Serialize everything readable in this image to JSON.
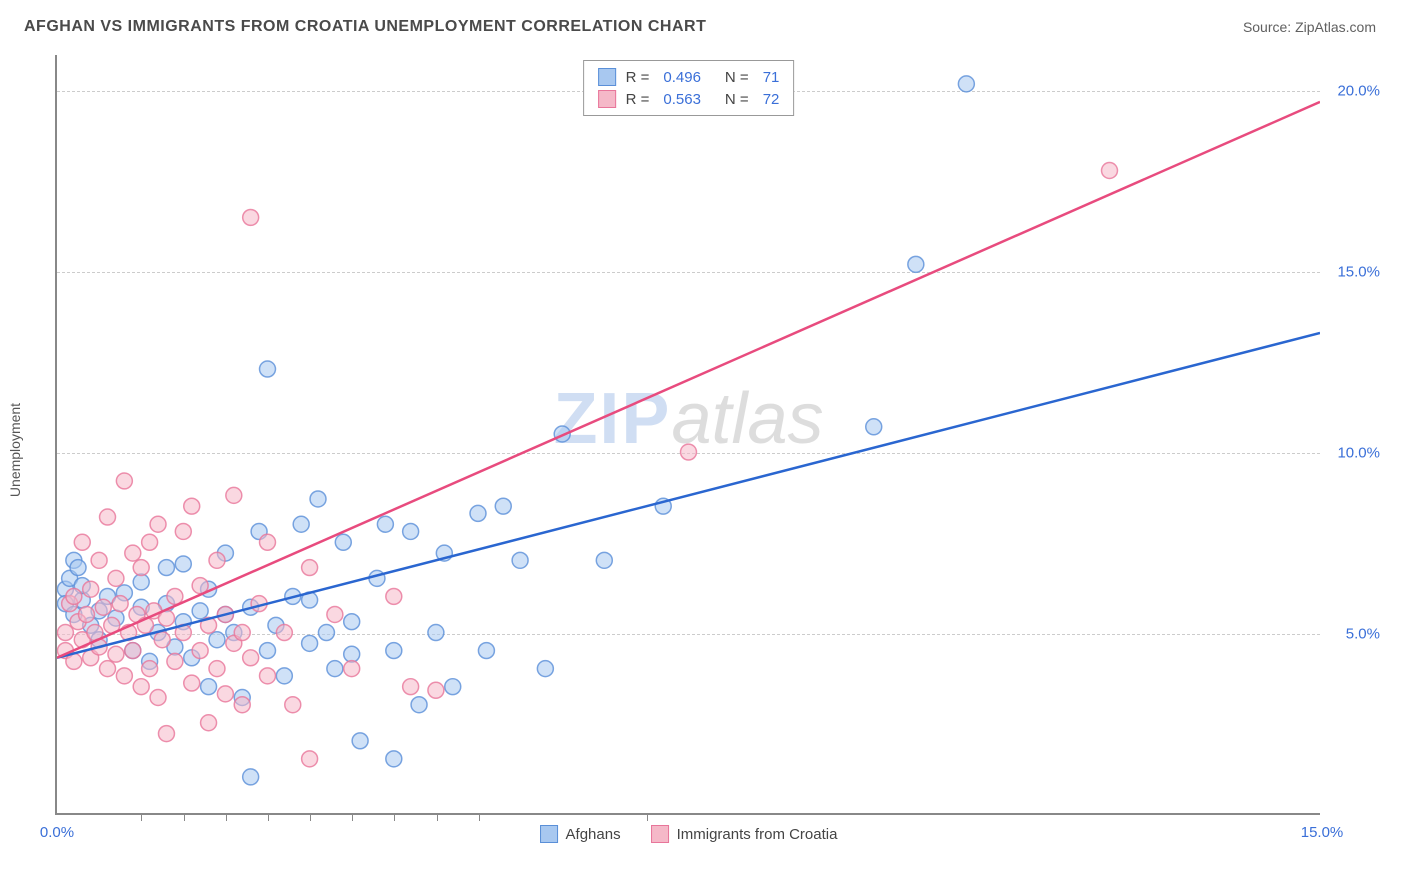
{
  "title": "AFGHAN VS IMMIGRANTS FROM CROATIA UNEMPLOYMENT CORRELATION CHART",
  "source": "Source: ZipAtlas.com",
  "y_axis_label": "Unemployment",
  "watermark_zip": "ZIP",
  "watermark_atlas": "atlas",
  "chart": {
    "type": "scatter",
    "x_range": [
      0,
      15
    ],
    "y_range": [
      0,
      21
    ],
    "x_ticks": [
      0,
      15
    ],
    "x_tick_labels": [
      "0.0%",
      "15.0%"
    ],
    "x_minor_ticks": [
      1,
      1.5,
      2,
      2.5,
      3,
      3.5,
      4,
      4.5,
      5,
      7
    ],
    "y_ticks": [
      5,
      10,
      15,
      20
    ],
    "y_tick_labels": [
      "5.0%",
      "10.0%",
      "15.0%",
      "20.0%"
    ],
    "grid_color": "#cccccc",
    "axis_color": "#888888",
    "background_color": "#ffffff",
    "marker_radius": 8,
    "marker_opacity": 0.55,
    "marker_stroke_opacity": 0.8,
    "line_width": 2.5
  },
  "series": [
    {
      "name": "Afghans",
      "color_fill": "#a8c8f0",
      "color_stroke": "#5a8fd8",
      "line_color": "#2a66d0",
      "R": "0.496",
      "N": "71",
      "trend_start": {
        "x": 0,
        "y": 4.3
      },
      "trend_end": {
        "x": 15,
        "y": 13.3
      },
      "points": [
        [
          0.1,
          6.2
        ],
        [
          0.1,
          5.8
        ],
        [
          0.15,
          6.5
        ],
        [
          0.2,
          7.0
        ],
        [
          0.2,
          5.5
        ],
        [
          0.25,
          6.8
        ],
        [
          0.3,
          5.9
        ],
        [
          0.3,
          6.3
        ],
        [
          0.4,
          5.2
        ],
        [
          0.5,
          5.6
        ],
        [
          0.5,
          4.8
        ],
        [
          0.6,
          6.0
        ],
        [
          0.7,
          5.4
        ],
        [
          0.8,
          6.1
        ],
        [
          0.9,
          4.5
        ],
        [
          1.0,
          5.7
        ],
        [
          1.0,
          6.4
        ],
        [
          1.1,
          4.2
        ],
        [
          1.2,
          5.0
        ],
        [
          1.3,
          5.8
        ],
        [
          1.3,
          6.8
        ],
        [
          1.4,
          4.6
        ],
        [
          1.5,
          5.3
        ],
        [
          1.5,
          6.9
        ],
        [
          1.6,
          4.3
        ],
        [
          1.7,
          5.6
        ],
        [
          1.8,
          6.2
        ],
        [
          1.8,
          3.5
        ],
        [
          1.9,
          4.8
        ],
        [
          2.0,
          5.5
        ],
        [
          2.0,
          7.2
        ],
        [
          2.1,
          5.0
        ],
        [
          2.2,
          3.2
        ],
        [
          2.3,
          5.7
        ],
        [
          2.3,
          1.0
        ],
        [
          2.4,
          7.8
        ],
        [
          2.5,
          4.5
        ],
        [
          2.5,
          12.3
        ],
        [
          2.6,
          5.2
        ],
        [
          2.7,
          3.8
        ],
        [
          2.8,
          6.0
        ],
        [
          2.9,
          8.0
        ],
        [
          3.0,
          4.7
        ],
        [
          3.0,
          5.9
        ],
        [
          3.1,
          8.7
        ],
        [
          3.2,
          5.0
        ],
        [
          3.3,
          4.0
        ],
        [
          3.4,
          7.5
        ],
        [
          3.5,
          5.3
        ],
        [
          3.5,
          4.4
        ],
        [
          3.6,
          2.0
        ],
        [
          3.8,
          6.5
        ],
        [
          3.9,
          8.0
        ],
        [
          4.0,
          4.5
        ],
        [
          4.0,
          1.5
        ],
        [
          4.2,
          7.8
        ],
        [
          4.3,
          3.0
        ],
        [
          4.5,
          5.0
        ],
        [
          4.6,
          7.2
        ],
        [
          4.7,
          3.5
        ],
        [
          5.0,
          8.3
        ],
        [
          5.1,
          4.5
        ],
        [
          5.3,
          8.5
        ],
        [
          5.5,
          7.0
        ],
        [
          5.8,
          4.0
        ],
        [
          6.0,
          10.5
        ],
        [
          6.5,
          7.0
        ],
        [
          7.2,
          8.5
        ],
        [
          9.7,
          10.7
        ],
        [
          10.2,
          15.2
        ],
        [
          10.8,
          20.2
        ]
      ]
    },
    {
      "name": "Immigrants from Croatia",
      "color_fill": "#f5b8c8",
      "color_stroke": "#e8759a",
      "line_color": "#e84b7e",
      "R": "0.563",
      "N": "72",
      "trend_start": {
        "x": 0,
        "y": 4.3
      },
      "trend_end": {
        "x": 15,
        "y": 19.7
      },
      "points": [
        [
          0.1,
          5.0
        ],
        [
          0.1,
          4.5
        ],
        [
          0.15,
          5.8
        ],
        [
          0.2,
          4.2
        ],
        [
          0.2,
          6.0
        ],
        [
          0.25,
          5.3
        ],
        [
          0.3,
          4.8
        ],
        [
          0.3,
          7.5
        ],
        [
          0.35,
          5.5
        ],
        [
          0.4,
          4.3
        ],
        [
          0.4,
          6.2
        ],
        [
          0.45,
          5.0
        ],
        [
          0.5,
          4.6
        ],
        [
          0.5,
          7.0
        ],
        [
          0.55,
          5.7
        ],
        [
          0.6,
          4.0
        ],
        [
          0.6,
          8.2
        ],
        [
          0.65,
          5.2
        ],
        [
          0.7,
          4.4
        ],
        [
          0.7,
          6.5
        ],
        [
          0.75,
          5.8
        ],
        [
          0.8,
          3.8
        ],
        [
          0.8,
          9.2
        ],
        [
          0.85,
          5.0
        ],
        [
          0.9,
          4.5
        ],
        [
          0.9,
          7.2
        ],
        [
          0.95,
          5.5
        ],
        [
          1.0,
          3.5
        ],
        [
          1.0,
          6.8
        ],
        [
          1.05,
          5.2
        ],
        [
          1.1,
          4.0
        ],
        [
          1.1,
          7.5
        ],
        [
          1.15,
          5.6
        ],
        [
          1.2,
          3.2
        ],
        [
          1.2,
          8.0
        ],
        [
          1.25,
          4.8
        ],
        [
          1.3,
          5.4
        ],
        [
          1.3,
          2.2
        ],
        [
          1.4,
          6.0
        ],
        [
          1.4,
          4.2
        ],
        [
          1.5,
          7.8
        ],
        [
          1.5,
          5.0
        ],
        [
          1.6,
          3.6
        ],
        [
          1.6,
          8.5
        ],
        [
          1.7,
          4.5
        ],
        [
          1.7,
          6.3
        ],
        [
          1.8,
          5.2
        ],
        [
          1.8,
          2.5
        ],
        [
          1.9,
          4.0
        ],
        [
          1.9,
          7.0
        ],
        [
          2.0,
          5.5
        ],
        [
          2.0,
          3.3
        ],
        [
          2.1,
          4.7
        ],
        [
          2.1,
          8.8
        ],
        [
          2.2,
          5.0
        ],
        [
          2.2,
          3.0
        ],
        [
          2.3,
          4.3
        ],
        [
          2.3,
          16.5
        ],
        [
          2.4,
          5.8
        ],
        [
          2.5,
          3.8
        ],
        [
          2.5,
          7.5
        ],
        [
          2.7,
          5.0
        ],
        [
          2.8,
          3.0
        ],
        [
          3.0,
          6.8
        ],
        [
          3.0,
          1.5
        ],
        [
          3.3,
          5.5
        ],
        [
          3.5,
          4.0
        ],
        [
          4.0,
          6.0
        ],
        [
          4.2,
          3.5
        ],
        [
          4.5,
          3.4
        ],
        [
          7.5,
          10.0
        ],
        [
          12.5,
          17.8
        ]
      ]
    }
  ],
  "legend_top": {
    "r_label": "R =",
    "n_label": "N ="
  },
  "colors": {
    "tick_label": "#3a6fd8",
    "title": "#4a4a4a",
    "source": "#606060"
  }
}
